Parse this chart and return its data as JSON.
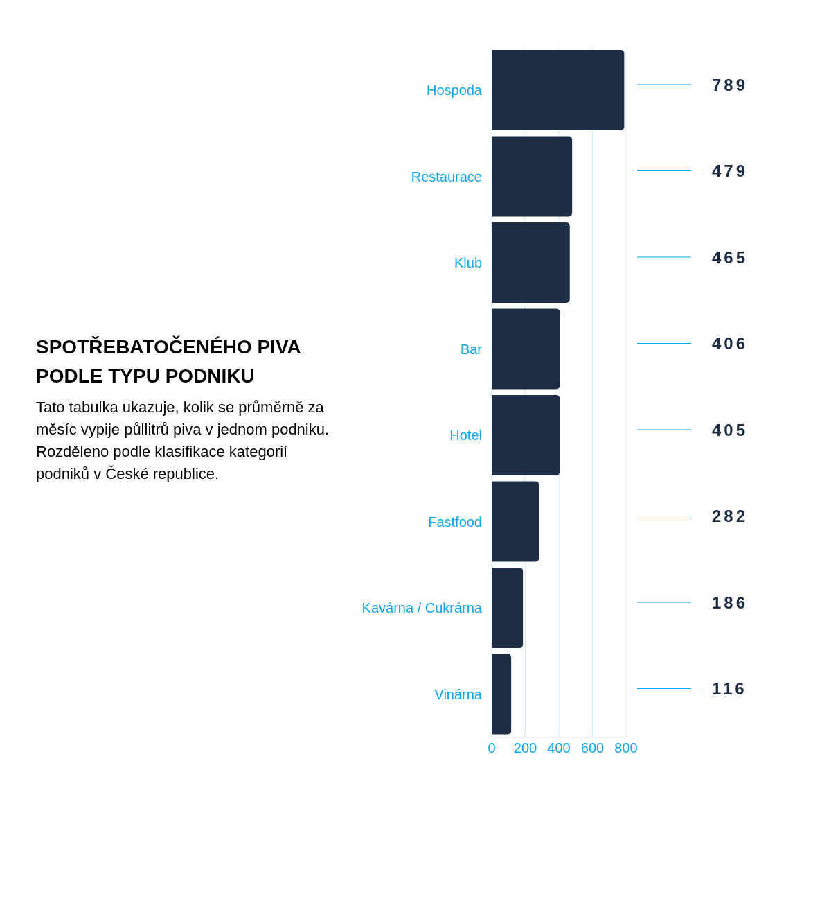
{
  "chart_data": {
    "type": "bar",
    "orientation": "horizontal",
    "title": "SPOTŘEBATOČENÉHO PIVA PODLE TYPU PODNIKU",
    "subtitle": "Tato tabulka ukazuje, kolik se průměrně za měsíc vypije půllitrů piva v jednom podniku. Rozděleno podle klasifikace kategorií podniků v České republice.",
    "categories": [
      "Hospoda",
      "Restaurace",
      "Klub",
      "Bar",
      "Hotel",
      "Fastfood",
      "Kavárna / Cukrárna",
      "Vinárna"
    ],
    "values": [
      789,
      479,
      465,
      406,
      405,
      282,
      186,
      116
    ],
    "color": "#1c2d45",
    "xlim": [
      0,
      800
    ],
    "xticks": [
      0,
      200,
      400,
      600,
      800
    ],
    "grid": "x",
    "data_labels": true
  }
}
